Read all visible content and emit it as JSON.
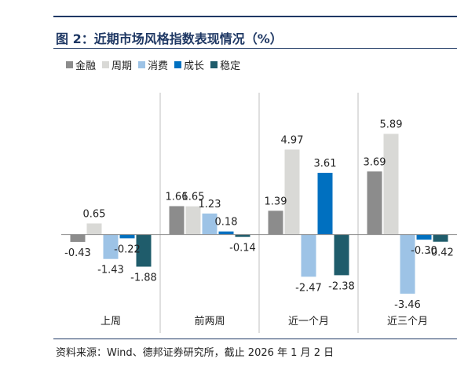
{
  "title": "图 2：近期市场风格指数表现情况（%）",
  "source": "资料来源：Wind、德邦证券研究所，截止 2026 年 1 月 2 日",
  "chart_data": {
    "type": "bar",
    "title": "图 2：近期市场风格指数表现情况（%）",
    "xlabel": "",
    "ylabel": "",
    "categories": [
      "上周",
      "前两周",
      "近一个月",
      "近三个月"
    ],
    "series": [
      {
        "name": "金融",
        "color": "#8c8c8c",
        "values": [
          -0.43,
          1.66,
          1.39,
          3.69
        ]
      },
      {
        "name": "周期",
        "color": "#d9d9d6",
        "values": [
          0.65,
          1.65,
          4.97,
          5.89
        ]
      },
      {
        "name": "消费",
        "color": "#9dc3e6",
        "values": [
          -1.43,
          1.23,
          -2.47,
          -3.46
        ]
      },
      {
        "name": "成长",
        "color": "#0070c0",
        "values": [
          -0.22,
          0.18,
          3.61,
          -0.3
        ]
      },
      {
        "name": "稳定",
        "color": "#1f5c6b",
        "values": [
          -1.88,
          -0.14,
          -2.38,
          -0.42
        ]
      }
    ],
    "data_labels": [
      [
        "-0.43",
        "0.65",
        "-1.43",
        "-0.22",
        "-1.88"
      ],
      [
        "1.66",
        "1.65",
        "1.23",
        "0.18",
        "-0.14"
      ],
      [
        "1.39",
        "4.97",
        "-2.47",
        "3.61",
        "-2.38"
      ],
      [
        "3.69",
        "5.89",
        "-3.46",
        "-0.30",
        "-0.42"
      ]
    ],
    "ylim": [
      -4.2,
      8.3
    ],
    "grid": false,
    "legend_position": "top-left"
  }
}
